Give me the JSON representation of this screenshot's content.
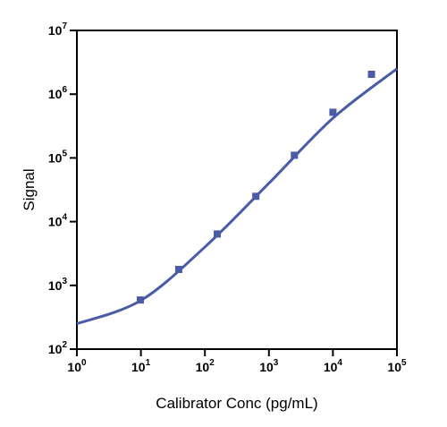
{
  "chart_data": {
    "type": "scatter",
    "xlabel": "Calibrator Conc (pg/mL)",
    "ylabel": "Signal",
    "x_scale": "log",
    "y_scale": "log",
    "xlim": [
      1,
      100000
    ],
    "ylim": [
      100,
      10000000
    ],
    "grid": false,
    "x_ticks": [
      {
        "base": "10",
        "exp": "0"
      },
      {
        "base": "10",
        "exp": "1"
      },
      {
        "base": "10",
        "exp": "2"
      },
      {
        "base": "10",
        "exp": "3"
      },
      {
        "base": "10",
        "exp": "4"
      },
      {
        "base": "10",
        "exp": "5"
      }
    ],
    "y_ticks": [
      {
        "base": "10",
        "exp": "2"
      },
      {
        "base": "10",
        "exp": "3"
      },
      {
        "base": "10",
        "exp": "4"
      },
      {
        "base": "10",
        "exp": "5"
      },
      {
        "base": "10",
        "exp": "6"
      },
      {
        "base": "10",
        "exp": "7"
      }
    ],
    "points": {
      "x": [
        9.8,
        39,
        156,
        625,
        2500,
        10000,
        40000
      ],
      "y": [
        590,
        1780,
        6400,
        25000,
        110000,
        520000,
        2050000
      ]
    },
    "fit_curve": {
      "x": [
        1,
        10,
        100,
        1000,
        10000,
        100000
      ],
      "y": [
        250,
        580,
        4000,
        40000,
        420000,
        2500000
      ]
    },
    "colors": {
      "series": "#4a5ba8",
      "axis": "#000000"
    }
  }
}
